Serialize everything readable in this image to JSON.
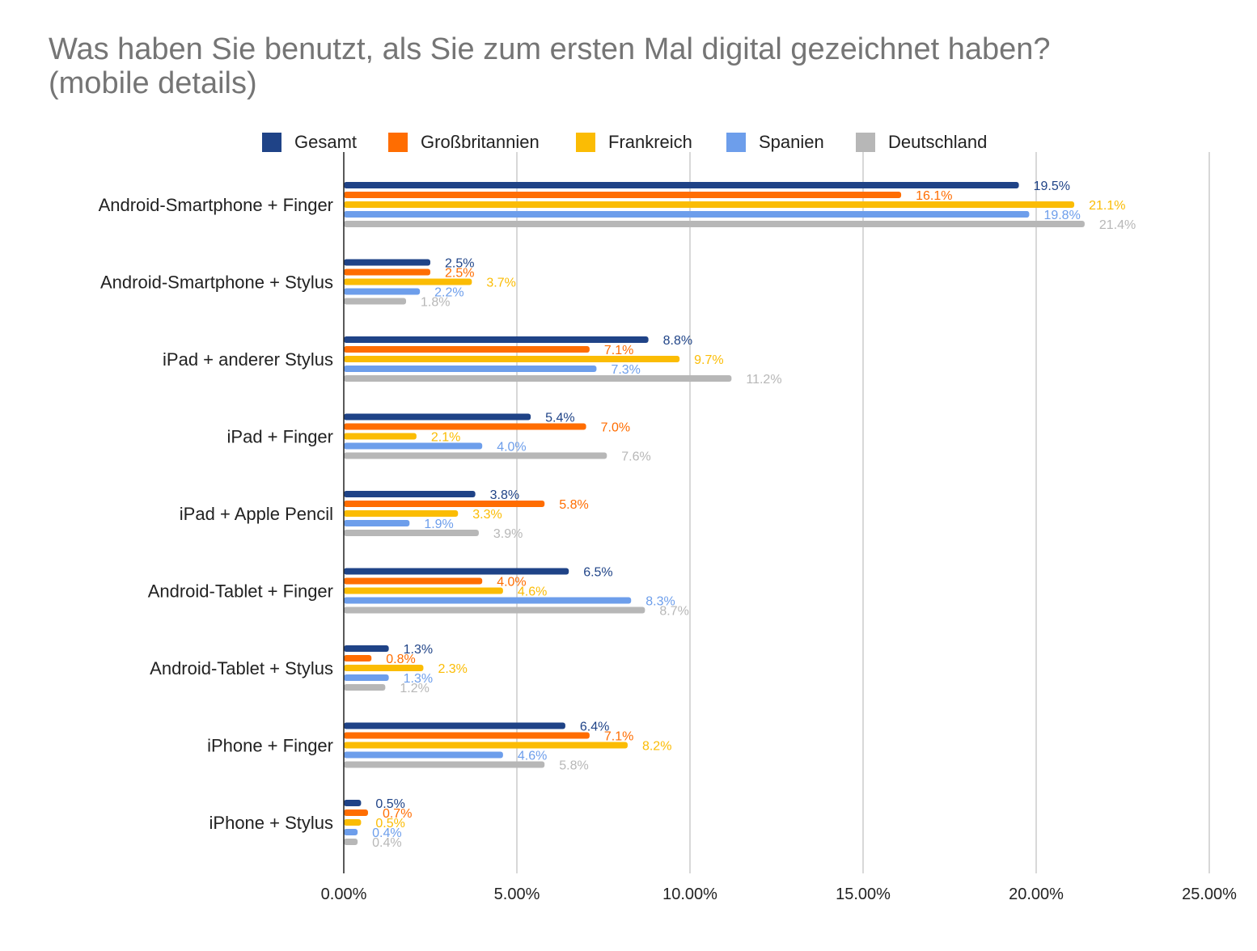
{
  "title": {
    "line1": "Was haben Sie benutzt, als Sie zum ersten Mal digital gezeichnet haben?",
    "line2": "(mobile details)"
  },
  "colors": {
    "gesamt": "#1f4387",
    "grossbritannien": "#ff6d01",
    "frankreich": "#fbbc04",
    "spanien": "#6d9eeb",
    "deutschland": "#b7b7b7",
    "grid": "#cccccc",
    "axis": "#222222"
  },
  "chart_data": {
    "type": "bar",
    "orientation": "horizontal",
    "title": "Was haben Sie benutzt, als Sie zum ersten Mal digital gezeichnet haben? (mobile details)",
    "categories": [
      "Android-Smartphone + Finger",
      "Android-Smartphone + Stylus",
      "iPad + anderer Stylus",
      "iPad + Finger",
      "iPad + Apple Pencil",
      "Android-Tablet + Finger",
      "Android-Tablet + Stylus",
      "iPhone + Finger",
      "iPhone + Stylus"
    ],
    "series": [
      {
        "name": "Gesamt",
        "color": "#1f4387",
        "values": [
          19.5,
          2.5,
          8.8,
          5.4,
          3.8,
          6.5,
          1.3,
          6.4,
          0.5
        ],
        "labels": [
          "19.5%",
          "2.5%",
          "8.8%",
          "5.4%",
          "3.8%",
          "6.5%",
          "1.3%",
          "6.4%",
          "0.5%"
        ]
      },
      {
        "name": "Großbritannien",
        "color": "#ff6d01",
        "values": [
          16.1,
          2.5,
          7.1,
          7.0,
          5.8,
          4.0,
          0.8,
          7.1,
          0.7
        ],
        "labels": [
          "16.1%",
          "2.5%",
          "7.1%",
          "7.0%",
          "5.8%",
          "4.0%",
          "0.8%",
          "7.1%",
          "0.7%"
        ]
      },
      {
        "name": "Frankreich",
        "color": "#fbbc04",
        "values": [
          21.1,
          3.7,
          9.7,
          2.1,
          3.3,
          4.6,
          2.3,
          8.2,
          0.5
        ],
        "labels": [
          "21.1%",
          "3.7%",
          "9.7%",
          "2.1%",
          "3.3%",
          "4.6%",
          "2.3%",
          "8.2%",
          "0.5%"
        ]
      },
      {
        "name": "Spanien",
        "color": "#6d9eeb",
        "values": [
          19.8,
          2.2,
          7.3,
          4.0,
          1.9,
          8.3,
          1.3,
          4.6,
          0.4
        ],
        "labels": [
          "19.8%",
          "2.2%",
          "7.3%",
          "4.0%",
          "1.9%",
          "8.3%",
          "1.3%",
          "4.6%",
          "0.4%"
        ]
      },
      {
        "name": "Deutschland",
        "color": "#b7b7b7",
        "values": [
          21.4,
          1.8,
          11.2,
          7.6,
          3.9,
          8.7,
          1.2,
          5.8,
          0.4
        ],
        "labels": [
          "21.4%",
          "1.8%",
          "11.2%",
          "7.6%",
          "3.9%",
          "8.7%",
          "1.2%",
          "5.8%",
          "0.4%"
        ]
      }
    ],
    "xlim": [
      0,
      25
    ],
    "xticks": [
      0,
      5,
      10,
      15,
      20,
      25
    ],
    "xtick_labels": [
      "0.00%",
      "5.00%",
      "10.00%",
      "15.00%",
      "20.00%",
      "25.00%"
    ],
    "grid": true,
    "legend": "top"
  }
}
